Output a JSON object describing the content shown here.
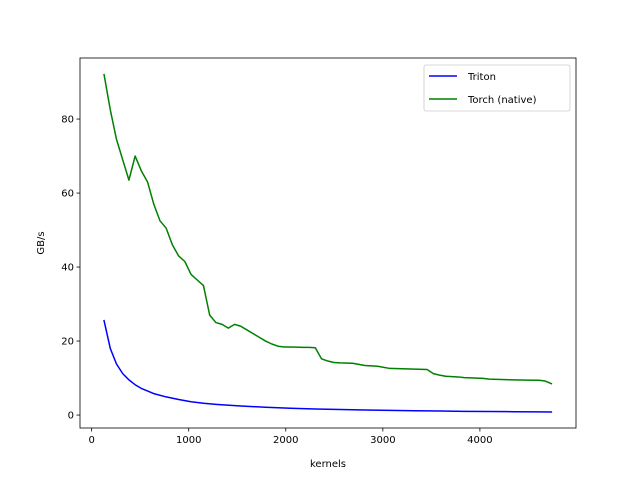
{
  "chart_data": {
    "type": "line",
    "xlabel": "kernels",
    "ylabel": "GB/s",
    "xlim": [
      -120,
      4990
    ],
    "ylim": [
      -3.5,
      96.5
    ],
    "xticks": [
      0,
      1000,
      2000,
      3000,
      4000
    ],
    "yticks": [
      0,
      20,
      40,
      60,
      80
    ],
    "legend_position": "top-right",
    "grid": false,
    "series": [
      {
        "name": "Triton",
        "color": "#0000ff",
        "x": [
          128,
          192,
          256,
          320,
          384,
          448,
          512,
          640,
          768,
          896,
          1024,
          1152,
          1280,
          1536,
          1792,
          2048,
          2304,
          2560,
          2816,
          3072,
          3328,
          3584,
          3840,
          4096,
          4352,
          4608,
          4736
        ],
        "y": [
          25.5,
          18.0,
          13.8,
          11.2,
          9.5,
          8.2,
          7.2,
          5.8,
          4.9,
          4.2,
          3.6,
          3.2,
          2.9,
          2.45,
          2.1,
          1.85,
          1.65,
          1.5,
          1.38,
          1.25,
          1.15,
          1.08,
          1.0,
          0.95,
          0.9,
          0.85,
          0.82
        ]
      },
      {
        "name": "Torch (native)",
        "color": "#008000",
        "x": [
          128,
          192,
          256,
          320,
          384,
          448,
          512,
          576,
          640,
          704,
          768,
          832,
          896,
          960,
          1024,
          1088,
          1152,
          1216,
          1280,
          1344,
          1408,
          1472,
          1536,
          1600,
          1664,
          1728,
          1792,
          1856,
          1920,
          1984,
          2048,
          2112,
          2176,
          2240,
          2304,
          2368,
          2432,
          2496,
          2560,
          2688,
          2816,
          2944,
          3072,
          3200,
          3328,
          3456,
          3520,
          3584,
          3648,
          3776,
          3840,
          4032,
          4096,
          4224,
          4352,
          4480,
          4608,
          4672,
          4736
        ],
        "y": [
          92.0,
          82.5,
          74.5,
          69.0,
          63.5,
          70.0,
          66.0,
          63.0,
          57.0,
          52.5,
          50.5,
          46.0,
          43.0,
          41.5,
          38.0,
          36.5,
          35.0,
          27.0,
          25.0,
          24.5,
          23.5,
          24.5,
          24.0,
          23.0,
          22.0,
          21.0,
          20.0,
          19.2,
          18.6,
          18.4,
          18.4,
          18.35,
          18.3,
          18.3,
          18.2,
          15.2,
          14.6,
          14.2,
          14.1,
          14.0,
          13.4,
          13.2,
          12.6,
          12.5,
          12.4,
          12.3,
          11.2,
          10.8,
          10.5,
          10.3,
          10.1,
          9.9,
          9.7,
          9.6,
          9.5,
          9.45,
          9.4,
          9.2,
          8.5
        ]
      }
    ]
  }
}
